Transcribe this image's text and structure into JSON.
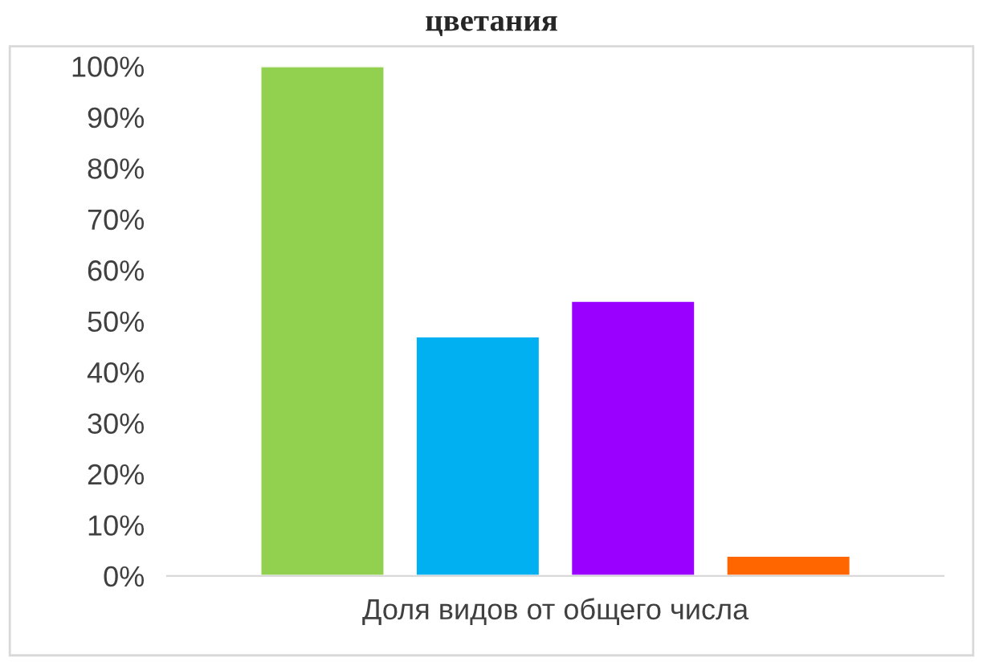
{
  "chart_data": {
    "type": "bar",
    "title": "цветания",
    "categories": [
      "Доля видов от общего числа"
    ],
    "series": [
      {
        "color": "#92d050",
        "values": [
          100
        ]
      },
      {
        "color": "#00b0f0",
        "values": [
          47
        ]
      },
      {
        "color": "#9900ff",
        "values": [
          54
        ]
      },
      {
        "color": "#ff6600",
        "values": [
          4
        ]
      }
    ],
    "ylim": [
      0,
      100
    ],
    "yticks": [
      {
        "value": 0,
        "label": "0%"
      },
      {
        "value": 10,
        "label": "10%"
      },
      {
        "value": 20,
        "label": "20%"
      },
      {
        "value": 30,
        "label": "30%"
      },
      {
        "value": 40,
        "label": "40%"
      },
      {
        "value": 50,
        "label": "50%"
      },
      {
        "value": 60,
        "label": "60%"
      },
      {
        "value": 70,
        "label": "70%"
      },
      {
        "value": 80,
        "label": "80%"
      },
      {
        "value": 90,
        "label": "90%"
      },
      {
        "value": 100,
        "label": "100%"
      }
    ],
    "grid": false,
    "legend": false
  }
}
